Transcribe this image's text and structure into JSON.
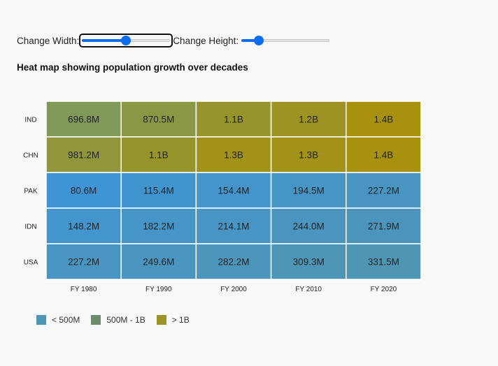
{
  "controls": {
    "width_label": "Change Width:",
    "height_label": "Change Height:",
    "width_value": 0.5,
    "height_value": 0.2
  },
  "chart_data": {
    "type": "heatmap",
    "title": "Heat map showing population growth over decades",
    "x_categories": [
      "FY 1980",
      "FY 1990",
      "FY 2000",
      "FY 2010",
      "FY 2020"
    ],
    "y_categories": [
      "IND",
      "CHN",
      "PAK",
      "IDN",
      "USA"
    ],
    "values": [
      [
        696.8,
        870.5,
        1100,
        1200,
        1400
      ],
      [
        981.2,
        1100,
        1300,
        1300,
        1400
      ],
      [
        80.6,
        115.4,
        154.4,
        194.5,
        227.2
      ],
      [
        148.2,
        182.2,
        214.1,
        244.0,
        271.9
      ],
      [
        227.2,
        249.6,
        282.2,
        309.3,
        331.5
      ]
    ],
    "labels": [
      [
        "696.8M",
        "870.5M",
        "1.1B",
        "1.2B",
        "1.4B"
      ],
      [
        "981.2M",
        "1.1B",
        "1.3B",
        "1.3B",
        "1.4B"
      ],
      [
        "80.6M",
        "115.4M",
        "154.4M",
        "194.5M",
        "227.2M"
      ],
      [
        "148.2M",
        "182.2M",
        "214.1M",
        "244.0M",
        "271.9M"
      ],
      [
        "227.2M",
        "249.6M",
        "282.2M",
        "309.3M",
        "331.5M"
      ]
    ],
    "colors": [
      "#3e95d6",
      "#7a9a62",
      "#a8910c",
      "#4f95b4"
    ],
    "legend": [
      {
        "label": "< 500M",
        "color": "#4f95b4"
      },
      {
        "label": "500M - 1B",
        "color": "#6e8b6d"
      },
      {
        "label": "> 1B",
        "color": "#9b9225"
      }
    ],
    "legend_position": "bottom-left"
  }
}
